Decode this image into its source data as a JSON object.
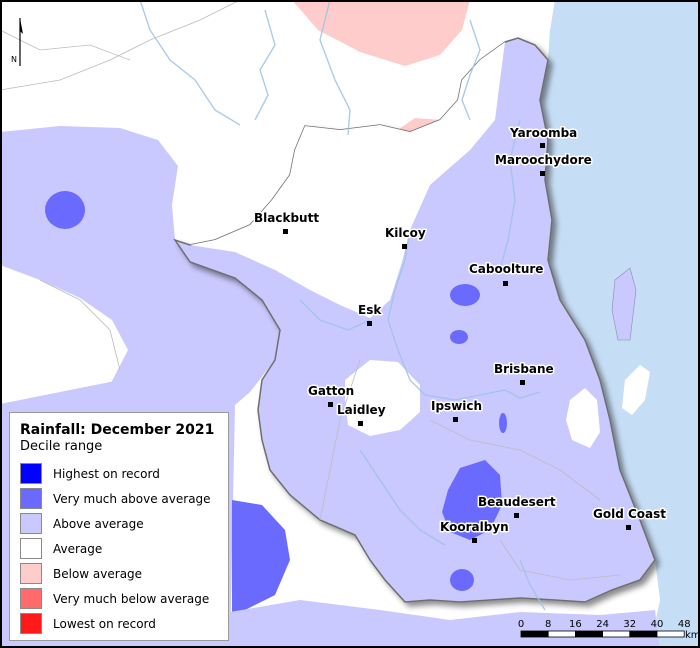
{
  "legend": {
    "title": "Rainfall: December 2021",
    "subtitle": "Decile range",
    "items": [
      {
        "label": "Highest on record",
        "color": "#0000ff"
      },
      {
        "label": "Very much above average",
        "color": "#6a6aff"
      },
      {
        "label": "Above average",
        "color": "#c9c9ff"
      },
      {
        "label": "Average",
        "color": "#ffffff"
      },
      {
        "label": "Below average",
        "color": "#ffcccc"
      },
      {
        "label": "Very much below average",
        "color": "#ff6a6a"
      },
      {
        "label": "Lowest on record",
        "color": "#ff1a1a"
      }
    ]
  },
  "towns": [
    {
      "name": "Yaroomba"
    },
    {
      "name": "Maroochydore"
    },
    {
      "name": "Blackbutt"
    },
    {
      "name": "Kilcoy"
    },
    {
      "name": "Caboolture"
    },
    {
      "name": "Esk"
    },
    {
      "name": "Brisbane"
    },
    {
      "name": "Gatton"
    },
    {
      "name": "Laidley"
    },
    {
      "name": "Ipswich"
    },
    {
      "name": "Beaudesert"
    },
    {
      "name": "Kooralbyn"
    },
    {
      "name": "Gold Coast"
    }
  ],
  "scale": {
    "ticks": [
      "0",
      "8",
      "16",
      "24",
      "32",
      "40",
      "48"
    ],
    "unit": "km"
  },
  "north_label": "N",
  "colors": {
    "ocean": "#c6def5",
    "river": "#9ec3e4",
    "region_border": "#6e6e6e"
  }
}
